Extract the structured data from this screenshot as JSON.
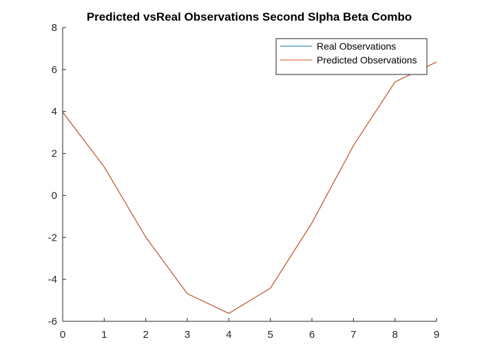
{
  "chart_data": {
    "type": "line",
    "title": "Predicted vsReal Observations Second Slpha Beta Combo",
    "xlabel": "",
    "ylabel": "",
    "xlim": [
      0,
      9
    ],
    "ylim": [
      -6,
      8
    ],
    "xticks": [
      0,
      1,
      2,
      3,
      4,
      5,
      6,
      7,
      8,
      9
    ],
    "yticks": [
      -6,
      -4,
      -2,
      0,
      2,
      4,
      6,
      8
    ],
    "grid": false,
    "legend_position": "top-right",
    "x": [
      0,
      1,
      2,
      3,
      4,
      5,
      6,
      7,
      8,
      9
    ],
    "series": [
      {
        "name": "Real Observations",
        "color": "#0072BD",
        "values": [
          3.97,
          1.36,
          -1.99,
          -4.68,
          -5.62,
          -4.42,
          -1.31,
          2.38,
          5.41,
          6.36
        ]
      },
      {
        "name": "Predicted Observations",
        "color": "#D95319",
        "values": [
          3.97,
          1.36,
          -1.99,
          -4.68,
          -5.62,
          -4.42,
          -1.31,
          2.38,
          5.41,
          6.36
        ]
      }
    ]
  }
}
